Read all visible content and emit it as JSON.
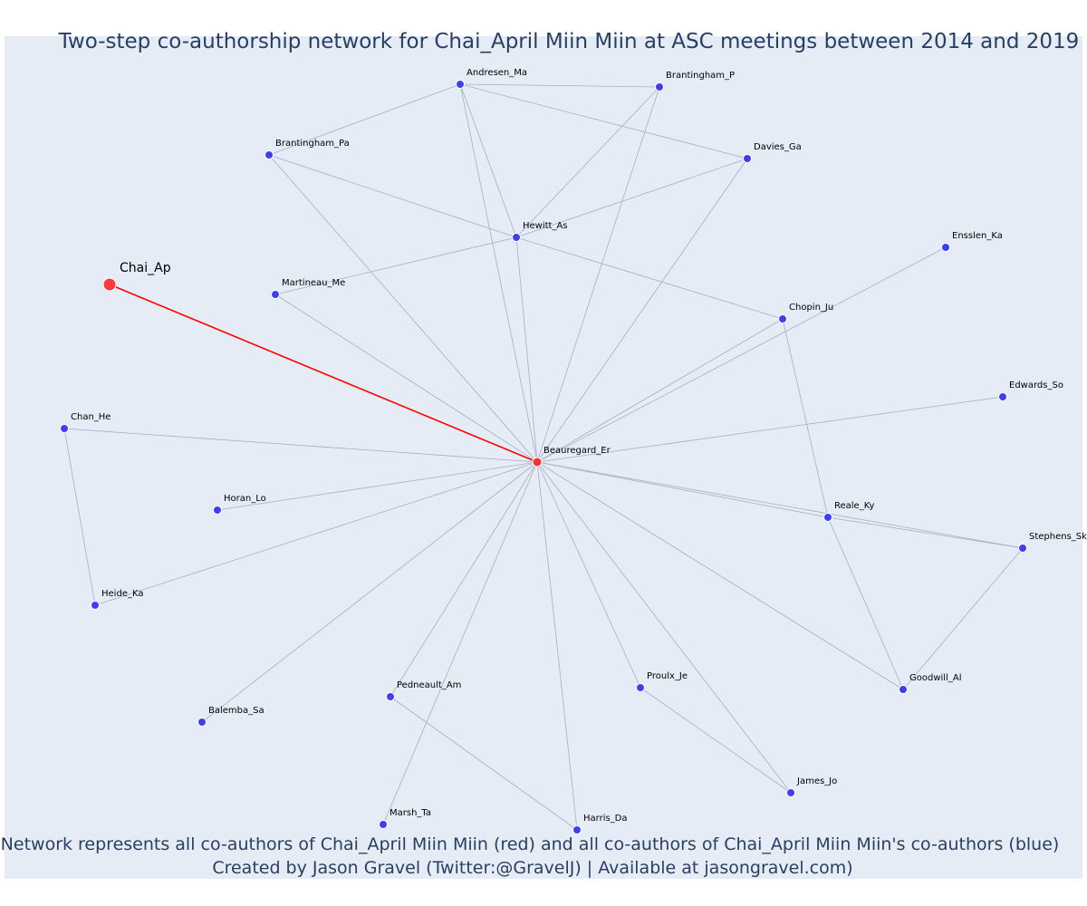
{
  "title": "Two-step co-authorship network for Chai_April Miin Miin at ASC meetings between 2014 and 2019",
  "caption_line1": "Network represents all co-authors of Chai_April Miin Miin (red) and all co-authors of Chai_April Miin Miin's co-authors (blue)",
  "caption_line2": "Created by Jason Gravel (Twitter:@GravelJ) | Available at jasongravel.com)",
  "colors": {
    "background": "#e5ecf6",
    "text": "#2a3f5f",
    "edge": "#a8acc4",
    "focal_edge": "#ff0000",
    "focal_node": "#ff3b3b",
    "coauthor_node": "#ee3333",
    "second_step_node": "#4040e8"
  },
  "nodes": [
    {
      "id": "Chai_Ap",
      "label": "Chai_Ap",
      "group": "focal"
    },
    {
      "id": "Beauregard_Er",
      "label": "Beauregard_Er",
      "group": "coauthor"
    },
    {
      "id": "Andresen_Ma",
      "label": "Andresen_Ma",
      "group": "second"
    },
    {
      "id": "Brantingham_P",
      "label": "Brantingham_P",
      "group": "second"
    },
    {
      "id": "Brantingham_Pa",
      "label": "Brantingham_Pa",
      "group": "second"
    },
    {
      "id": "Davies_Ga",
      "label": "Davies_Ga",
      "group": "second"
    },
    {
      "id": "Hewitt_As",
      "label": "Hewitt_As",
      "group": "second"
    },
    {
      "id": "Ensslen_Ka",
      "label": "Ensslen_Ka",
      "group": "second"
    },
    {
      "id": "Martineau_Me",
      "label": "Martineau_Me",
      "group": "second"
    },
    {
      "id": "Chopin_Ju",
      "label": "Chopin_Ju",
      "group": "second"
    },
    {
      "id": "Edwards_So",
      "label": "Edwards_So",
      "group": "second"
    },
    {
      "id": "Chan_He",
      "label": "Chan_He",
      "group": "second"
    },
    {
      "id": "Horan_Lo",
      "label": "Horan_Lo",
      "group": "second"
    },
    {
      "id": "Reale_Ky",
      "label": "Reale_Ky",
      "group": "second"
    },
    {
      "id": "Stephens_Sk",
      "label": "Stephens_Sk",
      "group": "second"
    },
    {
      "id": "Heide_Ka",
      "label": "Heide_Ka",
      "group": "second"
    },
    {
      "id": "Pedneault_Am",
      "label": "Pedneault_Am",
      "group": "second"
    },
    {
      "id": "Proulx_Je",
      "label": "Proulx_Je",
      "group": "second"
    },
    {
      "id": "Goodwill_Al",
      "label": "Goodwill_Al",
      "group": "second"
    },
    {
      "id": "Balemba_Sa",
      "label": "Balemba_Sa",
      "group": "second"
    },
    {
      "id": "James_Jo",
      "label": "James_Jo",
      "group": "second"
    },
    {
      "id": "Marsh_Ta",
      "label": "Marsh_Ta",
      "group": "second"
    },
    {
      "id": "Harris_Da",
      "label": "Harris_Da",
      "group": "second"
    }
  ],
  "edges": [
    [
      "Chai_Ap",
      "Beauregard_Er"
    ],
    [
      "Andresen_Ma",
      "Brantingham_P"
    ],
    [
      "Andresen_Ma",
      "Brantingham_Pa"
    ],
    [
      "Andresen_Ma",
      "Davies_Ga"
    ],
    [
      "Andresen_Ma",
      "Hewitt_As"
    ],
    [
      "Andresen_Ma",
      "Beauregard_Er"
    ],
    [
      "Brantingham_P",
      "Hewitt_As"
    ],
    [
      "Brantingham_P",
      "Beauregard_Er"
    ],
    [
      "Brantingham_Pa",
      "Hewitt_As"
    ],
    [
      "Brantingham_Pa",
      "Beauregard_Er"
    ],
    [
      "Davies_Ga",
      "Hewitt_As"
    ],
    [
      "Davies_Ga",
      "Beauregard_Er"
    ],
    [
      "Hewitt_As",
      "Martineau_Me"
    ],
    [
      "Hewitt_As",
      "Chopin_Ju"
    ],
    [
      "Hewitt_As",
      "Beauregard_Er"
    ],
    [
      "Martineau_Me",
      "Beauregard_Er"
    ],
    [
      "Ensslen_Ka",
      "Beauregard_Er"
    ],
    [
      "Chopin_Ju",
      "Beauregard_Er"
    ],
    [
      "Chopin_Ju",
      "Reale_Ky"
    ],
    [
      "Edwards_So",
      "Beauregard_Er"
    ],
    [
      "Chan_He",
      "Beauregard_Er"
    ],
    [
      "Chan_He",
      "Heide_Ka"
    ],
    [
      "Horan_Lo",
      "Beauregard_Er"
    ],
    [
      "Heide_Ka",
      "Beauregard_Er"
    ],
    [
      "Reale_Ky",
      "Beauregard_Er"
    ],
    [
      "Reale_Ky",
      "Stephens_Sk"
    ],
    [
      "Reale_Ky",
      "Goodwill_Al"
    ],
    [
      "Stephens_Sk",
      "Beauregard_Er"
    ],
    [
      "Stephens_Sk",
      "Goodwill_Al"
    ],
    [
      "Goodwill_Al",
      "Beauregard_Er"
    ],
    [
      "Balemba_Sa",
      "Beauregard_Er"
    ],
    [
      "Pedneault_Am",
      "Beauregard_Er"
    ],
    [
      "Pedneault_Am",
      "Harris_Da"
    ],
    [
      "Proulx_Je",
      "Beauregard_Er"
    ],
    [
      "Proulx_Je",
      "James_Jo"
    ],
    [
      "James_Jo",
      "Beauregard_Er"
    ],
    [
      "Marsh_Ta",
      "Beauregard_Er"
    ],
    [
      "Harris_Da",
      "Beauregard_Er"
    ]
  ]
}
